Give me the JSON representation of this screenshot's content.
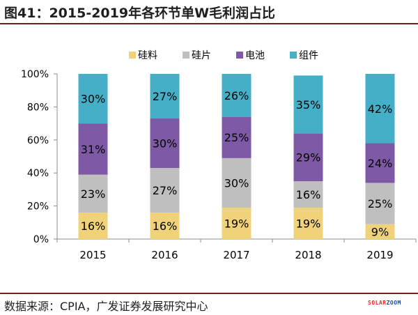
{
  "header": {
    "title": "图41：2015-2019年各环节单W毛利润占比"
  },
  "footer": {
    "source": "数据来源：CPIA，广发证券发展研究中心"
  },
  "watermark": {
    "text": "SOLARZOOM",
    "segments": [
      {
        "text": "SOLAR",
        "color": "#e8262a"
      },
      {
        "text": "ZOOM",
        "color": "#1c4ea8"
      }
    ]
  },
  "chart_data": {
    "type": "bar",
    "stacked": true,
    "categories": [
      "2015",
      "2016",
      "2017",
      "2018",
      "2019"
    ],
    "series": [
      {
        "name": "硅料",
        "color": "#f0d27a",
        "values": [
          16,
          16,
          19,
          19,
          9
        ]
      },
      {
        "name": "硅片",
        "color": "#bfbfbf",
        "values": [
          23,
          27,
          30,
          16,
          25
        ]
      },
      {
        "name": "电池",
        "color": "#7e5aa6",
        "values": [
          31,
          30,
          25,
          29,
          24
        ]
      },
      {
        "name": "组件",
        "color": "#46afc8",
        "values": [
          30,
          27,
          26,
          35,
          42
        ]
      }
    ],
    "data_labels": [
      [
        "16%",
        "16%",
        "19%",
        "19%",
        "9%"
      ],
      [
        "23%",
        "27%",
        "30%",
        "16%",
        "25%"
      ],
      [
        "31%",
        "30%",
        "25%",
        "29%",
        "24%"
      ],
      [
        "30%",
        "27%",
        "26%",
        "35%",
        "42%"
      ]
    ],
    "yticks": [
      "0%",
      "20%",
      "40%",
      "60%",
      "80%",
      "100%"
    ],
    "ylim": [
      0,
      100
    ],
    "legend_position": "top",
    "grid": false
  }
}
